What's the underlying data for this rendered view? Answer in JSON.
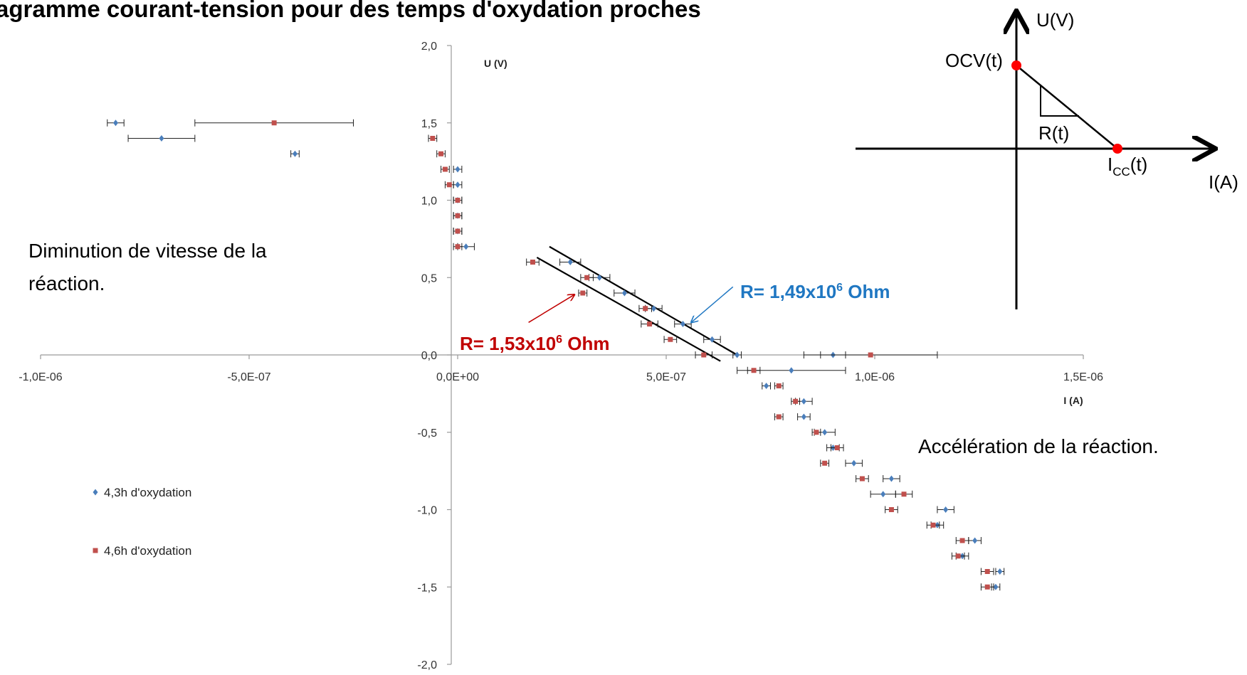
{
  "title": "agramme courant-tension pour des temps d'oxydation proches",
  "chart_data": {
    "type": "scatter",
    "xlabel": "I (A)",
    "ylabel": "U (V)",
    "xlim": [
      -1e-06,
      1.5e-06
    ],
    "ylim": [
      -2.0,
      2.0
    ],
    "x_ticks": [
      {
        "v": -1e-06,
        "label": "-1,0E-06"
      },
      {
        "v": -5e-07,
        "label": "-5,0E-07"
      },
      {
        "v": 0,
        "label": "0,0E+00"
      },
      {
        "v": 5e-07,
        "label": "5,0E-07"
      },
      {
        "v": 1e-06,
        "label": "1,0E-06"
      },
      {
        "v": 1.5e-06,
        "label": "1,5E-06"
      }
    ],
    "y_ticks": [
      {
        "v": 2.0,
        "label": "2,0"
      },
      {
        "v": 1.5,
        "label": "1,5"
      },
      {
        "v": 1.0,
        "label": "1,0"
      },
      {
        "v": 0.5,
        "label": "0,5"
      },
      {
        "v": 0.0,
        "label": "0,0"
      },
      {
        "v": -0.5,
        "label": "-0,5"
      },
      {
        "v": -1.0,
        "label": "-1,0"
      },
      {
        "v": -1.5,
        "label": "-1,5"
      },
      {
        "v": -2.0,
        "label": "-2,0"
      }
    ],
    "grid": false,
    "legend_position": "left",
    "series": [
      {
        "name": "4,3h d'oxydation",
        "color": "#4a7ebb",
        "marker": "diamond",
        "points": [
          {
            "x": -8.2e-07,
            "y": 1.5,
            "err": 2e-08
          },
          {
            "x": -7.1e-07,
            "y": 1.4,
            "err": 8e-08
          },
          {
            "x": -3.9e-07,
            "y": 1.3,
            "err": 1e-08
          },
          {
            "x": 0.0,
            "y": 1.2,
            "err": 1e-08
          },
          {
            "x": 0.0,
            "y": 1.1,
            "err": 1e-08
          },
          {
            "x": 0.0,
            "y": 1.0,
            "err": 1e-08
          },
          {
            "x": 0.0,
            "y": 0.9,
            "err": 1e-08
          },
          {
            "x": 0.0,
            "y": 0.8,
            "err": 1e-08
          },
          {
            "x": 2e-08,
            "y": 0.7,
            "err": 2e-08
          },
          {
            "x": 2.7e-07,
            "y": 0.6,
            "err": 2.5e-08
          },
          {
            "x": 3.4e-07,
            "y": 0.5,
            "err": 2.5e-08
          },
          {
            "x": 4e-07,
            "y": 0.4,
            "err": 2.5e-08
          },
          {
            "x": 4.7e-07,
            "y": 0.3,
            "err": 2e-08
          },
          {
            "x": 5.4e-07,
            "y": 0.2,
            "err": 2e-08
          },
          {
            "x": 6.1e-07,
            "y": 0.1,
            "err": 2e-08
          },
          {
            "x": 6.7e-07,
            "y": 0.0,
            "err": 1e-08
          },
          {
            "x": 9e-07,
            "y": 0.0,
            "err": 3e-08
          },
          {
            "x": 8e-07,
            "y": -0.1,
            "err": 1.3e-07
          },
          {
            "x": 7.4e-07,
            "y": -0.2,
            "err": 1e-08
          },
          {
            "x": 8.3e-07,
            "y": -0.3,
            "err": 2e-08
          },
          {
            "x": 8.3e-07,
            "y": -0.4,
            "err": 1.5e-08
          },
          {
            "x": 8.8e-07,
            "y": -0.5,
            "err": 2.5e-08
          },
          {
            "x": 9e-07,
            "y": -0.6,
            "err": 1.5e-08
          },
          {
            "x": 9.5e-07,
            "y": -0.7,
            "err": 2e-08
          },
          {
            "x": 1.04e-06,
            "y": -0.8,
            "err": 2e-08
          },
          {
            "x": 1.02e-06,
            "y": -0.9,
            "err": 3e-08
          },
          {
            "x": 1.17e-06,
            "y": -1.0,
            "err": 2e-08
          },
          {
            "x": 1.15e-06,
            "y": -1.1,
            "err": 1.5e-08
          },
          {
            "x": 1.24e-06,
            "y": -1.2,
            "err": 1.5e-08
          },
          {
            "x": 1.21e-06,
            "y": -1.3,
            "err": 1.5e-08
          },
          {
            "x": 1.3e-06,
            "y": -1.4,
            "err": 1e-08
          },
          {
            "x": 1.29e-06,
            "y": -1.5,
            "err": 1e-08
          }
        ]
      },
      {
        "name": "4,6h d'oxydation",
        "color": "#c0504d",
        "marker": "square",
        "points": [
          {
            "x": -4.4e-07,
            "y": 1.5,
            "err": 1.9e-07
          },
          {
            "x": -6e-08,
            "y": 1.4,
            "err": 1e-08
          },
          {
            "x": -4e-08,
            "y": 1.3,
            "err": 1e-08
          },
          {
            "x": -3e-08,
            "y": 1.2,
            "err": 1e-08
          },
          {
            "x": -2e-08,
            "y": 1.1,
            "err": 1e-08
          },
          {
            "x": 0.0,
            "y": 1.0,
            "err": 1e-08
          },
          {
            "x": 0.0,
            "y": 0.9,
            "err": 1e-08
          },
          {
            "x": 0.0,
            "y": 0.8,
            "err": 1e-08
          },
          {
            "x": 0.0,
            "y": 0.7,
            "err": 1e-08
          },
          {
            "x": 1.8e-07,
            "y": 0.6,
            "err": 1.5e-08
          },
          {
            "x": 3.1e-07,
            "y": 0.5,
            "err": 1.5e-08
          },
          {
            "x": 3e-07,
            "y": 0.4,
            "err": 1e-08
          },
          {
            "x": 4.5e-07,
            "y": 0.3,
            "err": 1.5e-08
          },
          {
            "x": 4.6e-07,
            "y": 0.2,
            "err": 2e-08
          },
          {
            "x": 5.1e-07,
            "y": 0.1,
            "err": 1.5e-08
          },
          {
            "x": 5.9e-07,
            "y": 0.0,
            "err": 2e-08
          },
          {
            "x": 9.9e-07,
            "y": 0.0,
            "err": 1.6e-07
          },
          {
            "x": 7.1e-07,
            "y": -0.1,
            "err": 1.5e-08
          },
          {
            "x": 7.7e-07,
            "y": -0.2,
            "err": 1e-08
          },
          {
            "x": 8.1e-07,
            "y": -0.3,
            "err": 1e-08
          },
          {
            "x": 7.7e-07,
            "y": -0.4,
            "err": 1e-08
          },
          {
            "x": 8.6e-07,
            "y": -0.5,
            "err": 1e-08
          },
          {
            "x": 9.1e-07,
            "y": -0.6,
            "err": 1.5e-08
          },
          {
            "x": 8.8e-07,
            "y": -0.7,
            "err": 1e-08
          },
          {
            "x": 9.7e-07,
            "y": -0.8,
            "err": 1.5e-08
          },
          {
            "x": 1.07e-06,
            "y": -0.9,
            "err": 2e-08
          },
          {
            "x": 1.04e-06,
            "y": -1.0,
            "err": 1.5e-08
          },
          {
            "x": 1.14e-06,
            "y": -1.1,
            "err": 1.5e-08
          },
          {
            "x": 1.21e-06,
            "y": -1.2,
            "err": 1.5e-08
          },
          {
            "x": 1.2e-06,
            "y": -1.3,
            "err": 1.5e-08
          },
          {
            "x": 1.27e-06,
            "y": -1.4,
            "err": 1.5e-08
          },
          {
            "x": 1.27e-06,
            "y": -1.5,
            "err": 1.5e-08
          }
        ]
      }
    ],
    "fit_lines": [
      {
        "x1": 2.2e-07,
        "y1": 0.7,
        "x2": 6.7e-07,
        "y2": 0.0
      },
      {
        "x1": 1.9e-07,
        "y1": 0.63,
        "x2": 6.3e-07,
        "y2": -0.04
      }
    ],
    "annotations": {
      "blue_r": {
        "pre": "R= 1,49x10",
        "sup": "6",
        "post": " Ohm",
        "color": "#1f77c2",
        "arrow_from": {
          "x": 6.6e-07,
          "y": 0.44
        },
        "arrow_to": {
          "x": 5.6e-07,
          "y": 0.21
        }
      },
      "red_r": {
        "pre": "R= 1,53x10",
        "sup": "6",
        "post": " Ohm",
        "color": "#c00000",
        "arrow_from": {
          "x": 1.7e-07,
          "y": 0.21
        },
        "arrow_to": {
          "x": 2.8e-07,
          "y": 0.39
        }
      },
      "left_note_line1": "Diminution de vitesse de la",
      "left_note_line2": "réaction.",
      "right_note": "Accélération de la réaction."
    }
  },
  "schematic": {
    "y_label": "U(V)",
    "x_label": "I(A)",
    "ocv_label": "OCV(t)",
    "r_label": "R(t)",
    "icc_main": "I",
    "icc_sub": "CC",
    "icc_suffix": "(t)",
    "dot_color": "#ff0000"
  }
}
